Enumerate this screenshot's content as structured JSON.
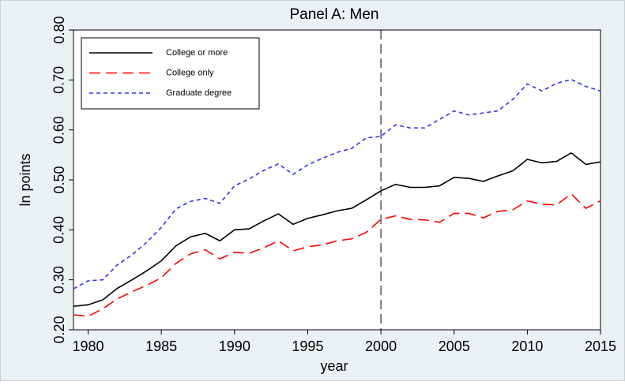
{
  "chart_data": {
    "type": "line",
    "title": "Panel A: Men",
    "x_label": "year",
    "y_label": "ln points",
    "x": [
      1979,
      1980,
      1981,
      1982,
      1983,
      1984,
      1985,
      1986,
      1987,
      1988,
      1989,
      1990,
      1991,
      1992,
      1993,
      1994,
      1995,
      1996,
      1997,
      1998,
      1999,
      2000,
      2001,
      2002,
      2003,
      2004,
      2005,
      2006,
      2007,
      2008,
      2009,
      2010,
      2011,
      2012,
      2013,
      2014,
      2015
    ],
    "series": [
      {
        "name": "College or more",
        "color": "#000000",
        "style": "solid",
        "values": [
          0.247,
          0.25,
          0.26,
          0.283,
          0.3,
          0.318,
          0.338,
          0.368,
          0.386,
          0.393,
          0.378,
          0.4,
          0.402,
          0.418,
          0.432,
          0.411,
          0.423,
          0.43,
          0.438,
          0.443,
          0.46,
          0.478,
          0.491,
          0.485,
          0.485,
          0.488,
          0.505,
          0.503,
          0.497,
          0.508,
          0.518,
          0.541,
          0.534,
          0.537,
          0.554,
          0.531,
          0.536
        ]
      },
      {
        "name": "College only",
        "color": "#ff0000",
        "style": "longdash",
        "values": [
          0.23,
          0.227,
          0.242,
          0.262,
          0.276,
          0.289,
          0.304,
          0.333,
          0.352,
          0.36,
          0.342,
          0.355,
          0.353,
          0.364,
          0.378,
          0.358,
          0.366,
          0.37,
          0.378,
          0.382,
          0.395,
          0.421,
          0.428,
          0.421,
          0.42,
          0.415,
          0.433,
          0.433,
          0.424,
          0.437,
          0.44,
          0.458,
          0.451,
          0.45,
          0.472,
          0.443,
          0.458
        ]
      },
      {
        "name": "Graduate degree",
        "color": "#3333ee",
        "style": "dash",
        "values": [
          0.282,
          0.298,
          0.3,
          0.33,
          0.35,
          0.375,
          0.405,
          0.442,
          0.457,
          0.463,
          0.453,
          0.488,
          0.502,
          0.519,
          0.532,
          0.511,
          0.53,
          0.543,
          0.555,
          0.563,
          0.584,
          0.587,
          0.61,
          0.604,
          0.604,
          0.621,
          0.638,
          0.63,
          0.634,
          0.638,
          0.661,
          0.692,
          0.678,
          0.693,
          0.701,
          0.687,
          0.678
        ]
      }
    ],
    "xlim": [
      1979,
      2015
    ],
    "xticks": [
      1980,
      1985,
      1990,
      1995,
      2000,
      2005,
      2010,
      2015
    ],
    "ylim": [
      0.2,
      0.8
    ],
    "yticks": [
      {
        "value": 0.2,
        "label": "0.20"
      },
      {
        "value": 0.3,
        "label": "0.30"
      },
      {
        "value": 0.4,
        "label": "0.40"
      },
      {
        "value": 0.5,
        "label": "0.50"
      },
      {
        "value": 0.6,
        "label": "0.60"
      },
      {
        "value": 0.7,
        "label": "0.70"
      },
      {
        "value": 0.8,
        "label": "0.80"
      }
    ],
    "vline": 2000,
    "legend": "upper left",
    "grid": false
  }
}
